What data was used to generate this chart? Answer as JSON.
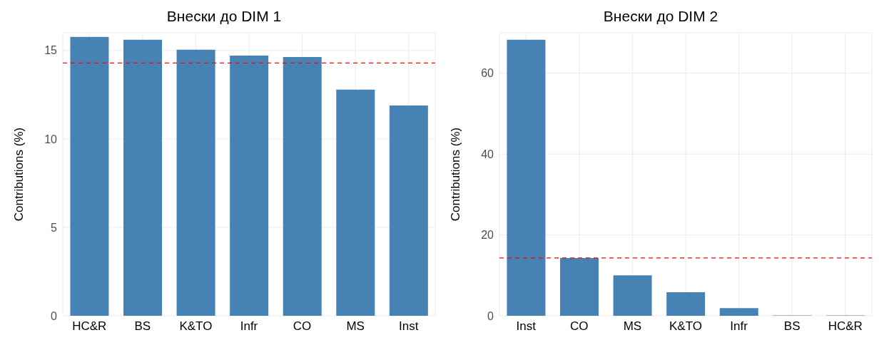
{
  "chart_data": [
    {
      "type": "bar",
      "title": "Внески до DIM 1",
      "ylabel": "Contributions (%)",
      "categories": [
        "HC&R",
        "BS",
        "K&TO",
        "Infr",
        "CO",
        "MS",
        "Inst"
      ],
      "values": [
        15.77,
        15.61,
        15.04,
        14.71,
        14.63,
        12.79,
        11.89
      ],
      "color": "#4682b4",
      "ylim": [
        0,
        16
      ],
      "yticks": [
        0,
        5,
        10,
        15
      ],
      "grid": true,
      "ref_lines": [
        {
          "axis": "y",
          "value": 14.29,
          "color": "#ff0000",
          "line_style": "dashed"
        }
      ]
    },
    {
      "type": "bar",
      "title": "Внески до DIM 2",
      "ylabel": "Contributions (%)",
      "categories": [
        "Inst",
        "CO",
        "MS",
        "K&TO",
        "Infr",
        "BS",
        "HC&R"
      ],
      "values": [
        68.3,
        14.3,
        10.0,
        5.8,
        1.9,
        0.1,
        0.1
      ],
      "color": "#4682b4",
      "ylim": [
        0,
        70
      ],
      "yticks": [
        0,
        20,
        40,
        60
      ],
      "grid": true,
      "ref_lines": [
        {
          "axis": "y",
          "value": 14.29,
          "color": "#ff0000",
          "line_style": "dashed"
        }
      ]
    }
  ]
}
